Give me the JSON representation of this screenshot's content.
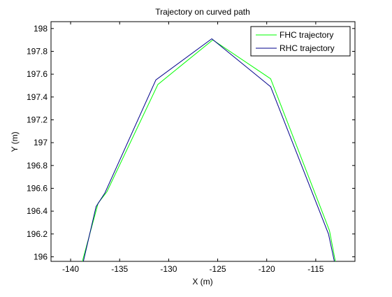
{
  "chart_data": {
    "type": "line",
    "title": "Trajectory on curved path",
    "xlabel": "X (m)",
    "ylabel": "Y (m)",
    "xlim": [
      -142,
      -111
    ],
    "ylim": [
      195.96,
      198.06
    ],
    "xticks": [
      -140,
      -135,
      -130,
      -125,
      -120,
      -115
    ],
    "yticks": [
      196,
      196.2,
      196.4,
      196.6,
      196.8,
      197,
      197.2,
      197.4,
      197.6,
      197.8,
      198
    ],
    "xtick_labels": [
      "-140",
      "-135",
      "-130",
      "-125",
      "-120",
      "-115"
    ],
    "ytick_labels": [
      "196",
      "196.2",
      "196.4",
      "196.6",
      "196.8",
      "197",
      "197.2",
      "197.4",
      "197.6",
      "197.8",
      "198"
    ],
    "grid": false,
    "legend_position": "top-right",
    "series": [
      {
        "name": "FHC trajectory",
        "color": "#00ff00",
        "x": [
          -138.8,
          -137.2,
          -136.3,
          -131.1,
          -125.5,
          -119.6,
          -113.6,
          -113.0
        ],
        "y": [
          195.96,
          196.47,
          196.57,
          197.51,
          197.9,
          197.56,
          196.23,
          195.96
        ]
      },
      {
        "name": "RHC trajectory",
        "color": "#00008b",
        "x": [
          -138.7,
          -137.4,
          -136.5,
          -131.3,
          -125.6,
          -119.6,
          -113.7,
          -113.1
        ],
        "y": [
          195.96,
          196.44,
          196.56,
          197.55,
          197.91,
          197.49,
          196.2,
          195.96
        ]
      }
    ]
  }
}
